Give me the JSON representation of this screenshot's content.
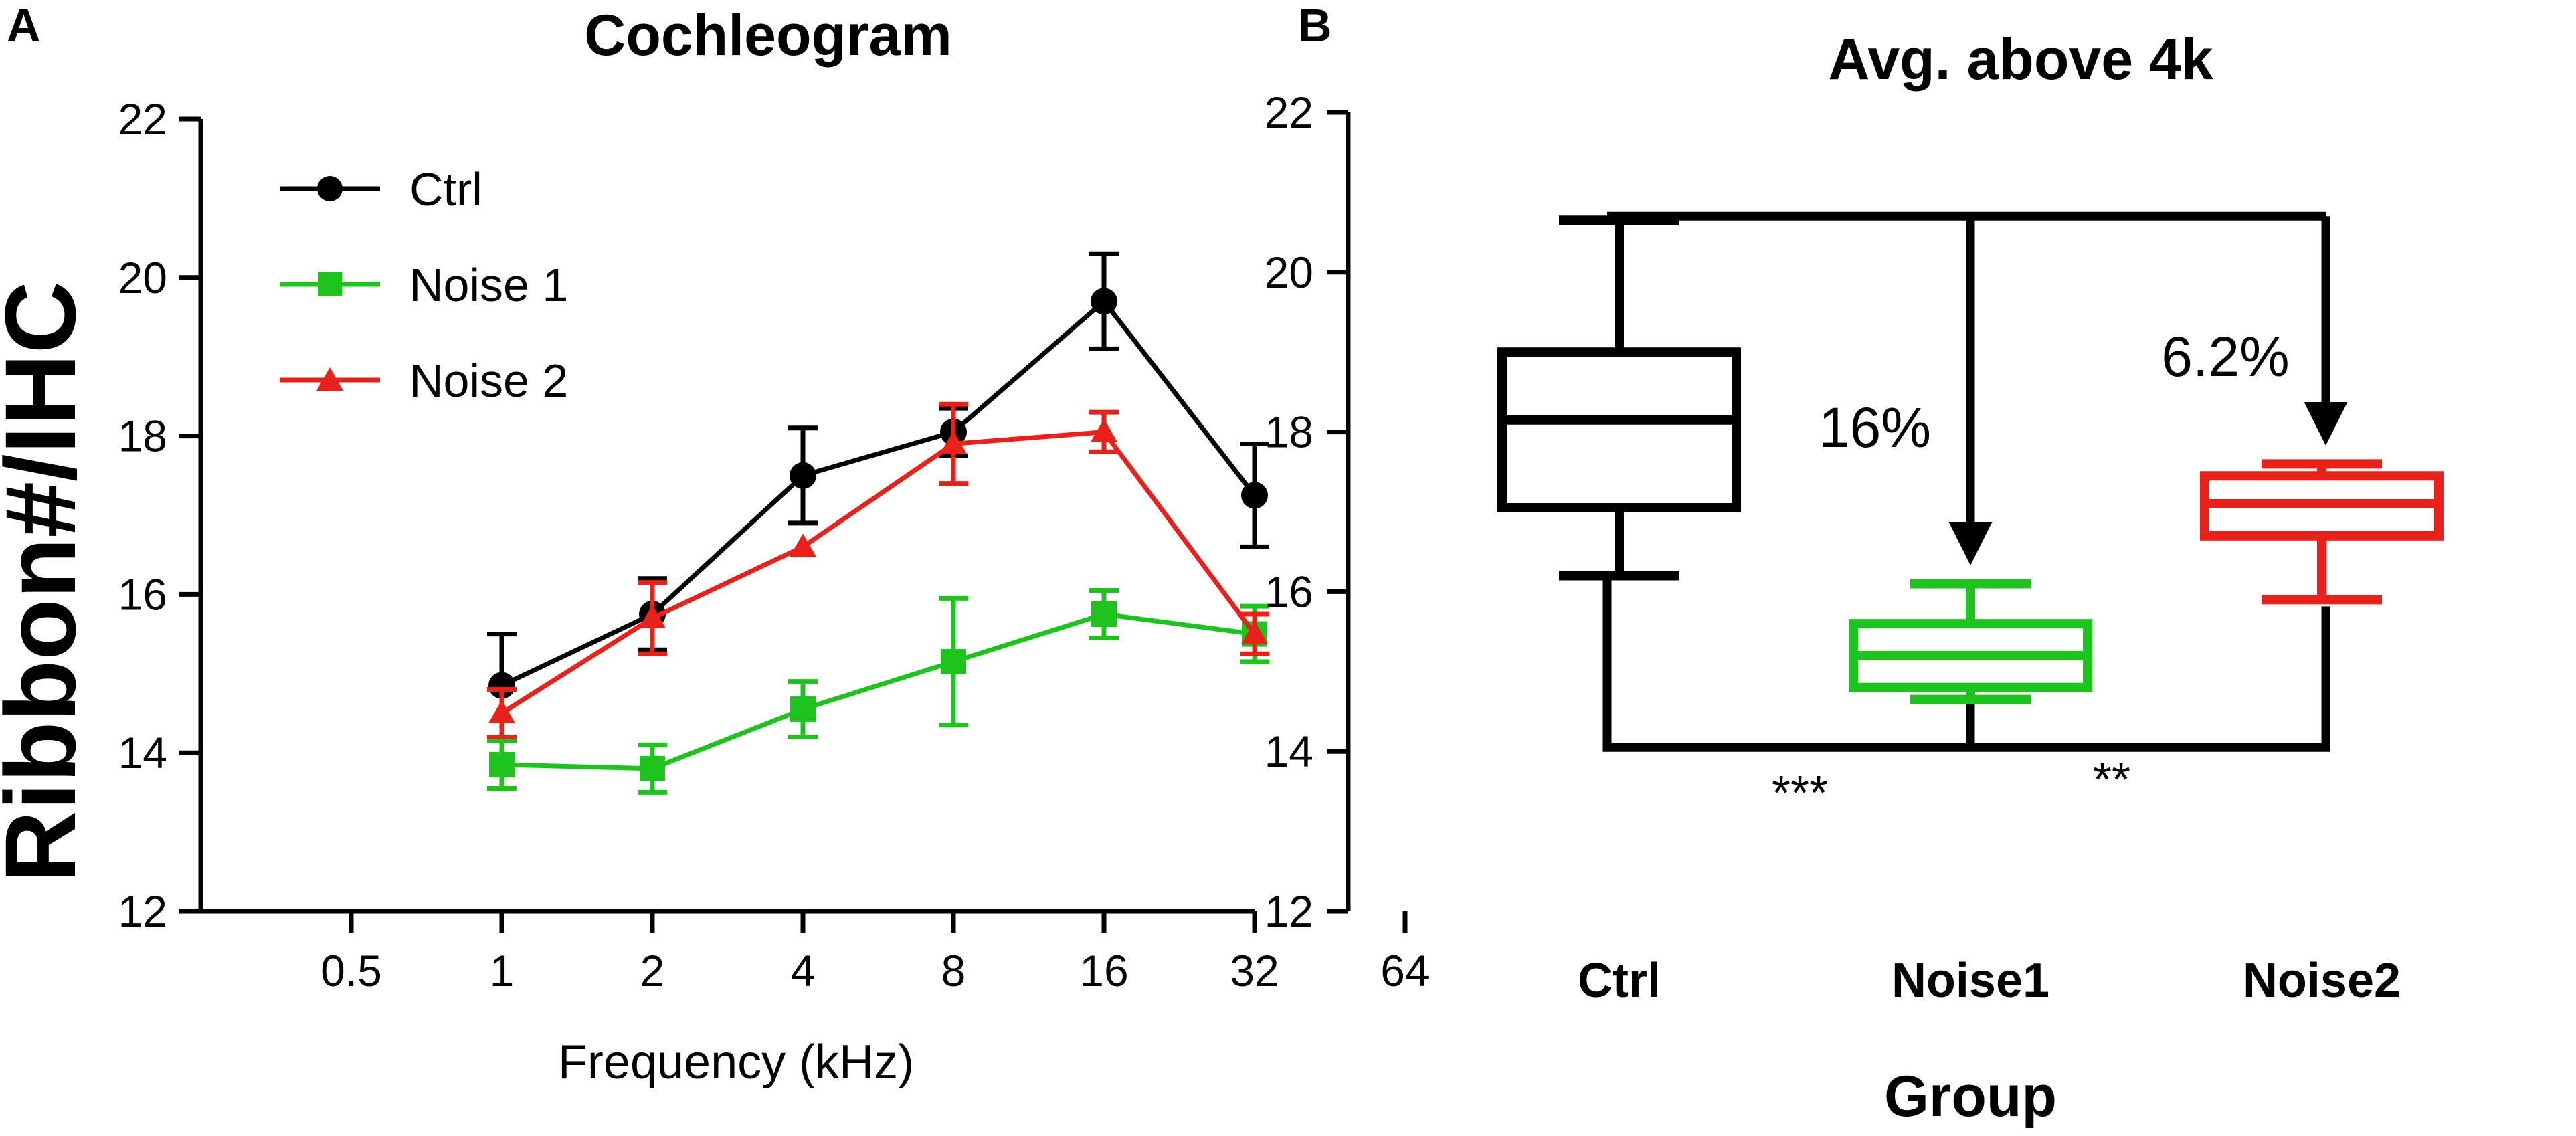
{
  "chart_data": [
    {
      "type": "line",
      "panel": "A",
      "title": "Cochleogram",
      "xlabel": "Frequency (kHz)",
      "ylabel": "Ribbon#/IHC",
      "xscale": "log2",
      "xticks": [
        "0.5",
        "1",
        "2",
        "4",
        "8",
        "16",
        "32",
        "64"
      ],
      "yticks": [
        "12",
        "14",
        "16",
        "18",
        "20",
        "22"
      ],
      "ylim": [
        12,
        22
      ],
      "x": [
        1,
        2,
        4,
        8,
        16,
        32
      ],
      "legend_position": "top-left",
      "series": [
        {
          "name": "Ctrl",
          "color": "#000000",
          "marker": "circle",
          "values": [
            14.85,
            15.75,
            17.5,
            18.05,
            19.7,
            17.25
          ],
          "errors": [
            0.65,
            0.45,
            0.6,
            0.3,
            0.6,
            0.65
          ]
        },
        {
          "name": "Noise 1",
          "color": "#1ec31e",
          "marker": "square",
          "values": [
            13.85,
            13.8,
            14.55,
            15.15,
            15.75,
            15.5
          ],
          "errors": [
            0.3,
            0.3,
            0.35,
            0.8,
            0.3,
            0.35
          ]
        },
        {
          "name": "Noise 2",
          "color": "#e8211a",
          "marker": "triangle",
          "values": [
            14.5,
            15.7,
            16.6,
            17.9,
            18.05,
            15.5
          ],
          "errors": [
            0.3,
            0.45,
            0.0,
            0.5,
            0.25,
            0.25
          ]
        }
      ]
    },
    {
      "type": "box",
      "panel": "B",
      "title": "Avg. above 4k",
      "xlabel": "Group",
      "ylabel": "",
      "ylim": [
        12,
        22
      ],
      "yticks": [
        "12",
        "14",
        "16",
        "18",
        "20",
        "22"
      ],
      "categories": [
        "Ctrl",
        "Noise1",
        "Noise2"
      ],
      "boxes": [
        {
          "name": "Ctrl",
          "color": "#000000",
          "min": 16.2,
          "q1": 17.05,
          "median": 18.15,
          "q3": 19.0,
          "max": 20.65
        },
        {
          "name": "Noise1",
          "color": "#1ec31e",
          "min": 14.65,
          "q1": 14.8,
          "median": 15.2,
          "q3": 15.6,
          "max": 16.1
        },
        {
          "name": "Noise2",
          "color": "#e8211a",
          "min": 15.9,
          "q1": 16.7,
          "median": 17.1,
          "q3": 17.45,
          "max": 17.6
        }
      ],
      "annotations": {
        "percent_noise1": "16%",
        "percent_noise2": "6.2%",
        "sig_ctrl_noise1": "***",
        "sig_ctrl_noise2": "**"
      }
    }
  ]
}
